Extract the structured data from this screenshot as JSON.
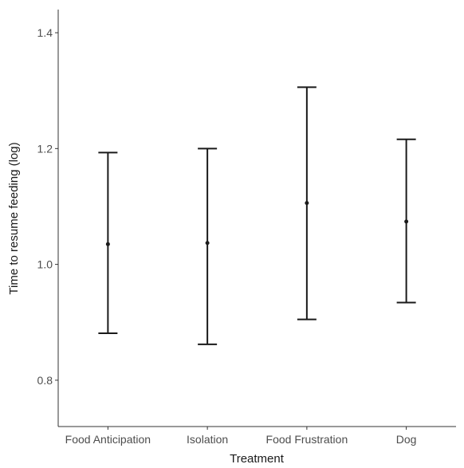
{
  "chart_data": {
    "type": "errorbar",
    "title": "",
    "xlabel": "Treatment",
    "ylabel": "Time to resume feeding (log)",
    "categories": [
      "Food Anticipation",
      "Isolation",
      "Food Frustration",
      "Dog"
    ],
    "mean": [
      1.035,
      1.037,
      1.106,
      1.074
    ],
    "lower": [
      0.881,
      0.862,
      0.905,
      0.934
    ],
    "upper": [
      1.193,
      1.2,
      1.306,
      1.216
    ],
    "ylim": [
      0.72,
      1.44
    ],
    "yticks": [
      0.8,
      1.0,
      1.2,
      1.4
    ],
    "ytick_labels": [
      "0.8",
      "1.0",
      "1.2",
      "1.4"
    ],
    "grid": false,
    "legend": "none"
  }
}
